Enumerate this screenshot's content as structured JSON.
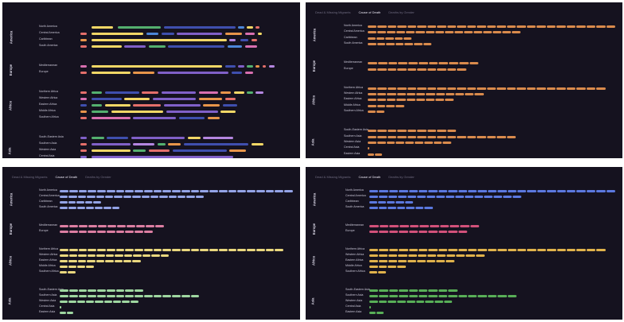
{
  "tabs": [
    "Dead & Missing Migrants",
    "Cause of Death",
    "Deaths by Gender"
  ],
  "regions": [
    {
      "name": "America",
      "rows": [
        {
          "name": "North America",
          "total": 100
        },
        {
          "name": "Central America",
          "total": 62
        },
        {
          "name": "Caribbean",
          "total": 18
        },
        {
          "name": "South America",
          "total": 26
        }
      ]
    },
    {
      "name": "Europe",
      "rows": [
        {
          "name": "Mediterranean",
          "total": 45
        },
        {
          "name": "Europe",
          "total": 40
        }
      ]
    },
    {
      "name": "Africa",
      "rows": [
        {
          "name": "Northern Africa",
          "total": 96
        },
        {
          "name": "Western Africa",
          "total": 47
        },
        {
          "name": "Eastern Africa",
          "total": 35
        },
        {
          "name": "Middle Africa",
          "total": 15
        },
        {
          "name": "Southern Africa",
          "total": 7
        }
      ]
    },
    {
      "name": "Asia",
      "rows": [
        {
          "name": "South-Eastern Asia",
          "total": 36
        },
        {
          "name": "Southern Asia",
          "total": 60
        },
        {
          "name": "Western Asia",
          "total": 34
        },
        {
          "name": "Central Asia",
          "total": 1
        },
        {
          "name": "Eastern Asia",
          "total": 6
        }
      ]
    }
  ],
  "panels": [
    {
      "id": "cause",
      "show_tabs": false
    },
    {
      "id": "orange",
      "show_tabs": true,
      "active_tab": 1,
      "colors": {
        "America": "#d98a4c",
        "Europe": "#d98a4c",
        "Africa": "#d98a4c",
        "Asia": "#d98a4c"
      }
    },
    {
      "id": "pastel",
      "show_tabs": true,
      "active_tab": 1,
      "colors": {
        "America": "#93a3e6",
        "Europe": "#dc7ea2",
        "Africa": "#e9d77e",
        "Asia": "#9ed6a0"
      }
    },
    {
      "id": "vivid",
      "show_tabs": true,
      "active_tab": 1,
      "colors": {
        "America": "#5b78df",
        "Europe": "#d2517a",
        "Africa": "#e0b24b",
        "Asia": "#58ae57"
      }
    }
  ],
  "cause_colors": [
    "#f2d766",
    "#3f4fae",
    "#e46f6b",
    "#d86fb0",
    "#8060c8",
    "#54b06f",
    "#e8954a",
    "#4c86d8",
    "#b486e0"
  ],
  "cause_rows": [
    [
      [
        3,
        3,
        0.82
      ],
      [
        8,
        10,
        0
      ],
      [
        20,
        20,
        5
      ],
      [
        41,
        33,
        1
      ],
      [
        75,
        3,
        7
      ],
      [
        79,
        3,
        0
      ],
      [
        83,
        2,
        2
      ]
    ],
    [
      [
        3,
        3,
        2
      ],
      [
        8,
        24,
        0
      ],
      [
        33,
        6,
        7
      ],
      [
        40,
        6,
        1
      ],
      [
        47,
        21,
        4
      ],
      [
        69,
        8,
        6
      ],
      [
        78,
        5,
        3
      ],
      [
        84,
        2,
        0
      ]
    ],
    [
      [
        3,
        3,
        6
      ],
      [
        8,
        62,
        0
      ],
      [
        71,
        3,
        8
      ],
      [
        76,
        4,
        1
      ],
      [
        81,
        3,
        2
      ]
    ],
    [
      [
        3,
        3,
        2
      ],
      [
        8,
        14,
        0
      ],
      [
        23,
        10,
        4
      ],
      [
        34,
        8,
        5
      ],
      [
        43,
        26,
        1
      ],
      [
        70,
        7,
        7
      ],
      [
        78,
        6,
        3
      ]
    ],
    [
      [
        3,
        3,
        3
      ],
      [
        8,
        60,
        0
      ],
      [
        69,
        5,
        1
      ],
      [
        75,
        3,
        4
      ],
      [
        79,
        3,
        5
      ],
      [
        83,
        2,
        6
      ],
      [
        86,
        2,
        2
      ],
      [
        89,
        3,
        8
      ]
    ],
    [
      [
        3,
        3,
        2
      ],
      [
        8,
        18,
        0
      ],
      [
        27,
        10,
        6
      ],
      [
        38,
        33,
        4
      ],
      [
        72,
        5,
        1
      ],
      [
        78,
        4,
        3
      ]
    ],
    [
      [
        3,
        3,
        2
      ],
      [
        8,
        5,
        5
      ],
      [
        14,
        16,
        1
      ],
      [
        31,
        8,
        2
      ],
      [
        40,
        16,
        4
      ],
      [
        57,
        9,
        3
      ],
      [
        67,
        5,
        6
      ],
      [
        73,
        5,
        0
      ],
      [
        79,
        3,
        5
      ],
      [
        83,
        4,
        8
      ]
    ],
    [
      [
        3,
        3,
        3
      ],
      [
        8,
        14,
        1
      ],
      [
        23,
        12,
        0
      ],
      [
        36,
        20,
        4
      ],
      [
        57,
        11,
        6
      ],
      [
        69,
        5,
        2
      ]
    ],
    [
      [
        3,
        3,
        1
      ],
      [
        8,
        5,
        5
      ],
      [
        14,
        12,
        0
      ],
      [
        27,
        13,
        2
      ],
      [
        41,
        17,
        4
      ],
      [
        59,
        8,
        6
      ],
      [
        68,
        7,
        1
      ]
    ],
    [
      [
        3,
        3,
        6
      ],
      [
        8,
        8,
        5
      ],
      [
        17,
        24,
        0
      ],
      [
        42,
        24,
        4
      ],
      [
        67,
        7,
        0
      ]
    ],
    [
      [
        3,
        3,
        2
      ],
      [
        8,
        18,
        3
      ],
      [
        27,
        20,
        4
      ],
      [
        48,
        12,
        1
      ],
      [
        61,
        6,
        6
      ]
    ],
    [
      [
        3,
        3,
        4
      ],
      [
        8,
        6,
        5
      ],
      [
        15,
        10,
        1
      ],
      [
        26,
        25,
        4
      ],
      [
        52,
        6,
        0
      ],
      [
        59,
        14,
        8
      ]
    ],
    [
      [
        3,
        3,
        2
      ],
      [
        8,
        18,
        4
      ],
      [
        27,
        10,
        8
      ],
      [
        38,
        4,
        5
      ],
      [
        43,
        6,
        6
      ],
      [
        50,
        30,
        1
      ],
      [
        81,
        6,
        0
      ]
    ],
    [
      [
        3,
        3,
        2
      ],
      [
        8,
        18,
        0
      ],
      [
        27,
        6,
        5
      ],
      [
        34,
        10,
        2
      ],
      [
        45,
        25,
        1
      ],
      [
        71,
        8,
        6
      ]
    ],
    [
      [
        3,
        3,
        4
      ],
      [
        8,
        65,
        4
      ]
    ],
    [
      [
        3,
        3,
        2
      ],
      [
        8,
        30,
        0
      ],
      [
        39,
        5,
        3
      ],
      [
        45,
        15,
        7
      ],
      [
        61,
        8,
        1
      ]
    ]
  ]
}
